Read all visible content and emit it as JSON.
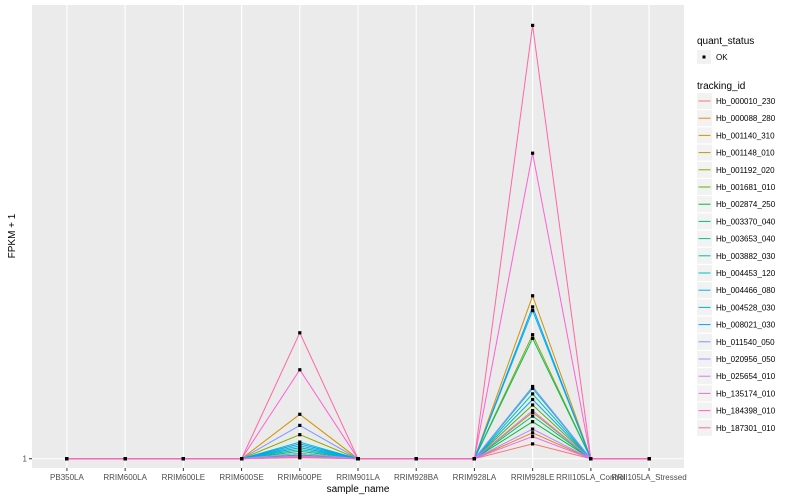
{
  "chart_data": {
    "type": "line",
    "xlabel": "sample_name",
    "ylabel": "FPKM + 1",
    "categories": [
      "PB350LA",
      "RRIM600LA",
      "RRIM600LE",
      "RRIM600SE",
      "RRIM600PE",
      "RRIM901LA",
      "RRIM928BA",
      "RRIM928LA",
      "RRIM928LE",
      "RRII105LA_Control",
      "RRII105LA_Stressed"
    ],
    "y_ticks": [
      {
        "value": 1,
        "label": "1"
      }
    ],
    "ylim": [
      0.5,
      25.5
    ],
    "grid": true,
    "legend_position": "right",
    "legend_shape": {
      "title": "quant_status",
      "entries": [
        "OK"
      ]
    },
    "legend_color_title": "tracking_id",
    "series": [
      {
        "name": "Hb_000010_230",
        "color": "#F8766D",
        "values": [
          1,
          1,
          1,
          1,
          1.05,
          1,
          1,
          1,
          1.8,
          1,
          1
        ]
      },
      {
        "name": "Hb_000088_280",
        "color": "#E7851E",
        "values": [
          1,
          1,
          1,
          1,
          1.1,
          1,
          1,
          1,
          2.4,
          1,
          1
        ]
      },
      {
        "name": "Hb_001140_310",
        "color": "#D09400",
        "values": [
          1,
          1,
          1,
          1,
          3.4,
          1,
          1,
          1,
          9.8,
          1,
          1
        ]
      },
      {
        "name": "Hb_001148_010",
        "color": "#B2A100",
        "values": [
          1,
          1,
          1,
          1,
          1.6,
          1,
          1,
          1,
          3.5,
          1,
          1
        ]
      },
      {
        "name": "Hb_001192_020",
        "color": "#8BAB00",
        "values": [
          1,
          1,
          1,
          1,
          2.3,
          1,
          1,
          1,
          7.7,
          1,
          1
        ]
      },
      {
        "name": "Hb_001681_010",
        "color": "#55B400",
        "values": [
          1,
          1,
          1,
          1,
          1.3,
          1,
          1,
          1,
          3.9,
          1,
          1
        ]
      },
      {
        "name": "Hb_002874_250",
        "color": "#00BA38",
        "values": [
          1,
          1,
          1,
          1,
          1.2,
          1,
          1,
          1,
          3.0,
          1,
          1
        ]
      },
      {
        "name": "Hb_003370_040",
        "color": "#00BE6C",
        "values": [
          1,
          1,
          1,
          1,
          1.4,
          1,
          1,
          1,
          7.5,
          1,
          1
        ]
      },
      {
        "name": "Hb_003653_040",
        "color": "#00C08E",
        "values": [
          1,
          1,
          1,
          1,
          1.2,
          1,
          1,
          1,
          3.3,
          1,
          1
        ]
      },
      {
        "name": "Hb_003882_030",
        "color": "#00C0AC",
        "values": [
          1,
          1,
          1,
          1,
          1.5,
          1,
          1,
          1,
          4.5,
          1,
          1
        ]
      },
      {
        "name": "Hb_004453_120",
        "color": "#00BDC6",
        "values": [
          1,
          1,
          1,
          1,
          1.9,
          1,
          1,
          1,
          4.8,
          1,
          1
        ]
      },
      {
        "name": "Hb_004466_080",
        "color": "#00B6DC",
        "values": [
          1,
          1,
          1,
          1,
          1.7,
          1,
          1,
          1,
          9.0,
          1,
          1
        ]
      },
      {
        "name": "Hb_004528_030",
        "color": "#00ABEF",
        "values": [
          1,
          1,
          1,
          1,
          1.6,
          1,
          1,
          1,
          4.2,
          1,
          1
        ]
      },
      {
        "name": "Hb_008021_030",
        "color": "#00A0FA",
        "values": [
          1,
          1,
          1,
          1,
          1.8,
          1,
          1,
          1,
          9.2,
          1,
          1
        ]
      },
      {
        "name": "Hb_011540_050",
        "color": "#7C96FF",
        "values": [
          1,
          1,
          1,
          1,
          2.8,
          1,
          1,
          1,
          4.9,
          1,
          1
        ]
      },
      {
        "name": "Hb_020956_050",
        "color": "#B38AFF",
        "values": [
          1,
          1,
          1,
          1,
          1.3,
          1,
          1,
          1,
          2.6,
          1,
          1
        ]
      },
      {
        "name": "Hb_025654_010",
        "color": "#D877F6",
        "values": [
          1,
          1,
          1,
          1,
          1.15,
          1,
          1,
          1,
          3.6,
          1,
          1
        ]
      },
      {
        "name": "Hb_135174_010",
        "color": "#EE6AE7",
        "values": [
          1,
          1,
          1,
          1,
          1.1,
          1,
          1,
          1,
          2.2,
          1,
          1
        ]
      },
      {
        "name": "Hb_184398_010",
        "color": "#FC61D5",
        "values": [
          1,
          1,
          1,
          1,
          5.8,
          1,
          1,
          1,
          17.5,
          1,
          1
        ]
      },
      {
        "name": "Hb_187301_010",
        "color": "#FF67A4",
        "values": [
          1,
          1,
          1,
          1,
          7.8,
          1,
          1,
          1,
          24.4,
          1,
          1
        ]
      }
    ]
  }
}
